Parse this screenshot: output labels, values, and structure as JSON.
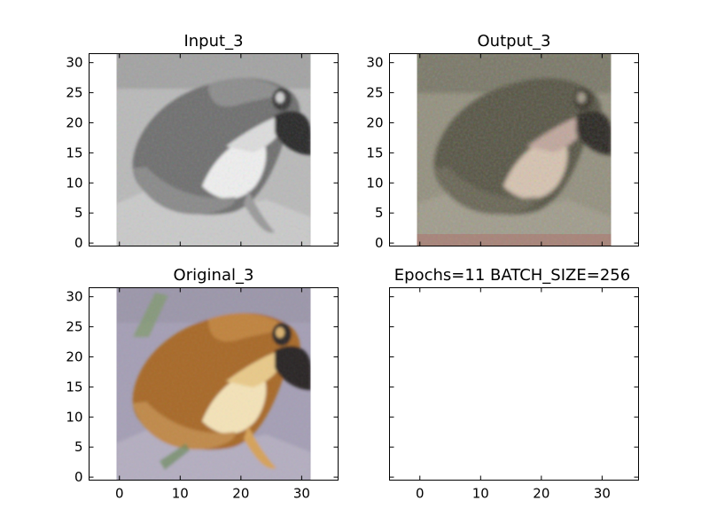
{
  "chart_data": [
    {
      "type": "image",
      "title": "Input_3",
      "colormap": "grayscale",
      "image_subject": "frog",
      "image_grid": [
        32,
        32
      ],
      "xlim": [
        -5,
        36
      ],
      "ylim": [
        31.5,
        -0.5
      ],
      "xticks": [
        0,
        10,
        20,
        30
      ],
      "yticks": [
        0,
        5,
        10,
        15,
        20,
        25,
        30
      ],
      "show_xtick_labels": false,
      "show_ytick_labels": true,
      "grid": false
    },
    {
      "type": "image",
      "title": "Output_3",
      "colormap": "rgb",
      "image_subject": "frog",
      "image_grid": [
        32,
        32
      ],
      "xlim": [
        -5,
        36
      ],
      "ylim": [
        31.5,
        -0.5
      ],
      "xticks": [
        0,
        10,
        20,
        30
      ],
      "yticks": [
        0,
        5,
        10,
        15,
        20,
        25,
        30
      ],
      "show_xtick_labels": false,
      "show_ytick_labels": true,
      "grid": false
    },
    {
      "type": "image",
      "title": "Original_3",
      "colormap": "rgb",
      "image_subject": "frog",
      "image_grid": [
        32,
        32
      ],
      "xlim": [
        -5,
        36
      ],
      "ylim": [
        31.5,
        -0.5
      ],
      "xticks": [
        0,
        10,
        20,
        30
      ],
      "yticks": [
        0,
        5,
        10,
        15,
        20,
        25,
        30
      ],
      "show_xtick_labels": true,
      "show_ytick_labels": true,
      "grid": false
    },
    {
      "type": "empty",
      "title": "Epochs=11 BATCH_SIZE=256",
      "xlim": [
        -5,
        36
      ],
      "ylim": [
        31.5,
        -0.5
      ],
      "xticks": [
        0,
        10,
        20,
        30
      ],
      "yticks": [
        0,
        5,
        10,
        15,
        20,
        25,
        30
      ],
      "show_xtick_labels": true,
      "show_ytick_labels": false,
      "grid": false
    }
  ]
}
